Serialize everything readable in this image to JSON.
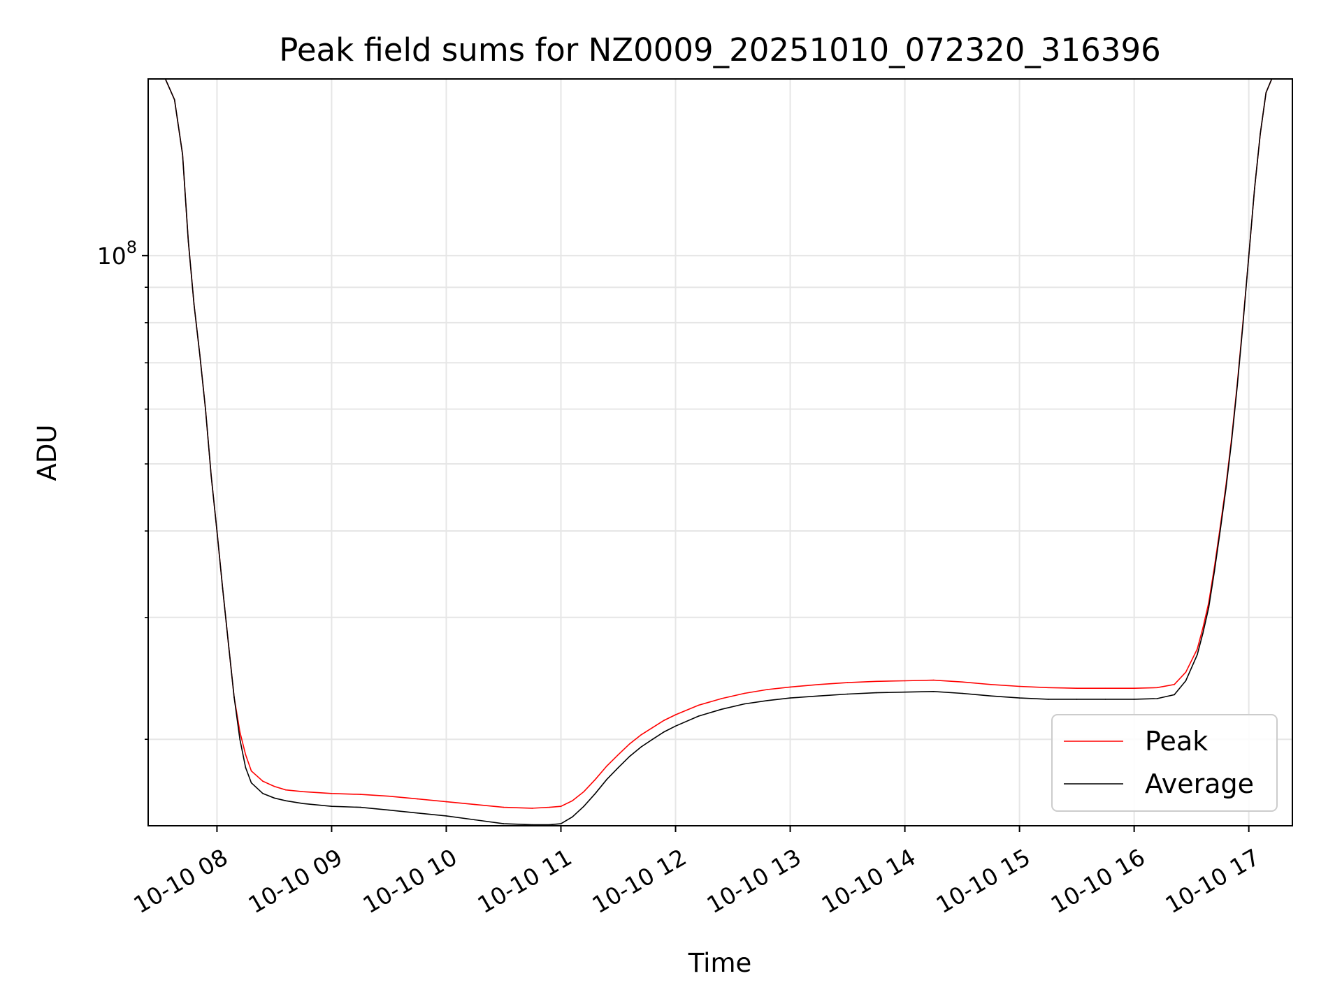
{
  "chart_data": {
    "type": "line",
    "title": "Peak field sums for NZ0009_20251010_072320_316396",
    "xlabel": "Time",
    "ylabel": "ADU",
    "yscale": "log",
    "ylim": [
      15000000,
      180000000
    ],
    "xlim": [
      7.4,
      17.38
    ],
    "x_ticks": [
      {
        "value": 8,
        "label": "10-10 08"
      },
      {
        "value": 9,
        "label": "10-10 09"
      },
      {
        "value": 10,
        "label": "10-10 10"
      },
      {
        "value": 11,
        "label": "10-10 11"
      },
      {
        "value": 12,
        "label": "10-10 12"
      },
      {
        "value": 13,
        "label": "10-10 13"
      },
      {
        "value": 14,
        "label": "10-10 14"
      },
      {
        "value": 15,
        "label": "10-10 15"
      },
      {
        "value": 16,
        "label": "10-10 16"
      },
      {
        "value": 17,
        "label": "10-10 17"
      }
    ],
    "y_major_tick": {
      "value": 100000000,
      "label_base": "10",
      "label_exp": "8"
    },
    "y_minor_ticks": [
      20000000,
      30000000,
      40000000,
      50000000,
      60000000,
      70000000,
      80000000,
      90000000,
      200000000
    ],
    "grid": true,
    "legend_position": "lower-right",
    "series": [
      {
        "name": "Average",
        "color": "#000000",
        "x": [
          7.4,
          7.55,
          7.63,
          7.7,
          7.75,
          7.8,
          7.85,
          7.9,
          7.95,
          8.0,
          8.05,
          8.1,
          8.15,
          8.2,
          8.25,
          8.3,
          8.4,
          8.5,
          8.6,
          8.75,
          9.0,
          9.25,
          9.5,
          9.75,
          10.0,
          10.25,
          10.5,
          10.75,
          10.9,
          11.0,
          11.1,
          11.2,
          11.3,
          11.4,
          11.5,
          11.6,
          11.7,
          11.8,
          11.9,
          12.0,
          12.2,
          12.4,
          12.6,
          12.8,
          13.0,
          13.25,
          13.5,
          13.75,
          14.0,
          14.25,
          14.5,
          14.75,
          15.0,
          15.25,
          15.5,
          15.75,
          16.0,
          16.2,
          16.35,
          16.45,
          16.55,
          16.6,
          16.65,
          16.7,
          16.75,
          16.8,
          16.85,
          16.9,
          16.95,
          17.0,
          17.05,
          17.1,
          17.15,
          17.2,
          17.3,
          17.38
        ],
        "values": [
          180000000,
          180000000,
          168000000,
          140000000,
          105000000,
          85000000,
          72000000,
          60000000,
          48000000,
          40000000,
          33000000,
          27500000,
          23000000,
          20000000,
          18200000,
          17300000,
          16700000,
          16450000,
          16300000,
          16150000,
          16000000,
          15950000,
          15800000,
          15650000,
          15500000,
          15300000,
          15100000,
          15050000,
          15050000,
          15100000,
          15450000,
          16000000,
          16700000,
          17500000,
          18200000,
          18900000,
          19500000,
          20000000,
          20500000,
          20900000,
          21600000,
          22100000,
          22500000,
          22750000,
          22950000,
          23100000,
          23250000,
          23350000,
          23400000,
          23450000,
          23300000,
          23100000,
          22950000,
          22850000,
          22850000,
          22850000,
          22850000,
          22900000,
          23200000,
          24300000,
          26500000,
          28500000,
          31000000,
          35000000,
          40000000,
          46000000,
          54000000,
          65000000,
          80000000,
          100000000,
          125000000,
          150000000,
          172000000,
          180000000,
          180000000,
          180000000
        ]
      },
      {
        "name": "Peak",
        "color": "#ff0000",
        "x": [
          7.4,
          7.55,
          7.63,
          7.7,
          7.75,
          7.8,
          7.85,
          7.9,
          7.95,
          8.0,
          8.05,
          8.1,
          8.15,
          8.2,
          8.25,
          8.3,
          8.4,
          8.5,
          8.6,
          8.75,
          9.0,
          9.25,
          9.5,
          9.75,
          10.0,
          10.25,
          10.5,
          10.75,
          10.9,
          11.0,
          11.1,
          11.2,
          11.3,
          11.4,
          11.5,
          11.6,
          11.7,
          11.8,
          11.9,
          12.0,
          12.2,
          12.4,
          12.6,
          12.8,
          13.0,
          13.25,
          13.5,
          13.75,
          14.0,
          14.25,
          14.5,
          14.75,
          15.0,
          15.25,
          15.5,
          15.75,
          16.0,
          16.2,
          16.35,
          16.45,
          16.55,
          16.6,
          16.65,
          16.7,
          16.75,
          16.8,
          16.85,
          16.9,
          16.95,
          17.0,
          17.05,
          17.1,
          17.15,
          17.2,
          17.3,
          17.38
        ],
        "values": [
          180000000,
          180000000,
          168000000,
          140000000,
          105000000,
          85000000,
          72000000,
          60000000,
          48000000,
          40000000,
          33000000,
          27500000,
          23000000,
          20500000,
          19000000,
          18000000,
          17400000,
          17100000,
          16900000,
          16800000,
          16700000,
          16650000,
          16550000,
          16400000,
          16250000,
          16100000,
          15950000,
          15900000,
          15950000,
          16000000,
          16300000,
          16800000,
          17500000,
          18300000,
          19000000,
          19700000,
          20300000,
          20800000,
          21300000,
          21700000,
          22400000,
          22900000,
          23300000,
          23600000,
          23800000,
          24000000,
          24150000,
          24250000,
          24300000,
          24350000,
          24200000,
          24000000,
          23850000,
          23750000,
          23700000,
          23700000,
          23700000,
          23750000,
          24000000,
          25000000,
          27000000,
          29000000,
          31500000,
          35500000,
          40500000,
          46500000,
          54500000,
          65500000,
          80500000,
          100000000,
          125000000,
          150000000,
          172000000,
          180000000,
          180000000,
          180000000
        ]
      }
    ],
    "legend": [
      {
        "label": "Peak",
        "color": "#ff0000"
      },
      {
        "label": "Average",
        "color": "#000000"
      }
    ]
  }
}
